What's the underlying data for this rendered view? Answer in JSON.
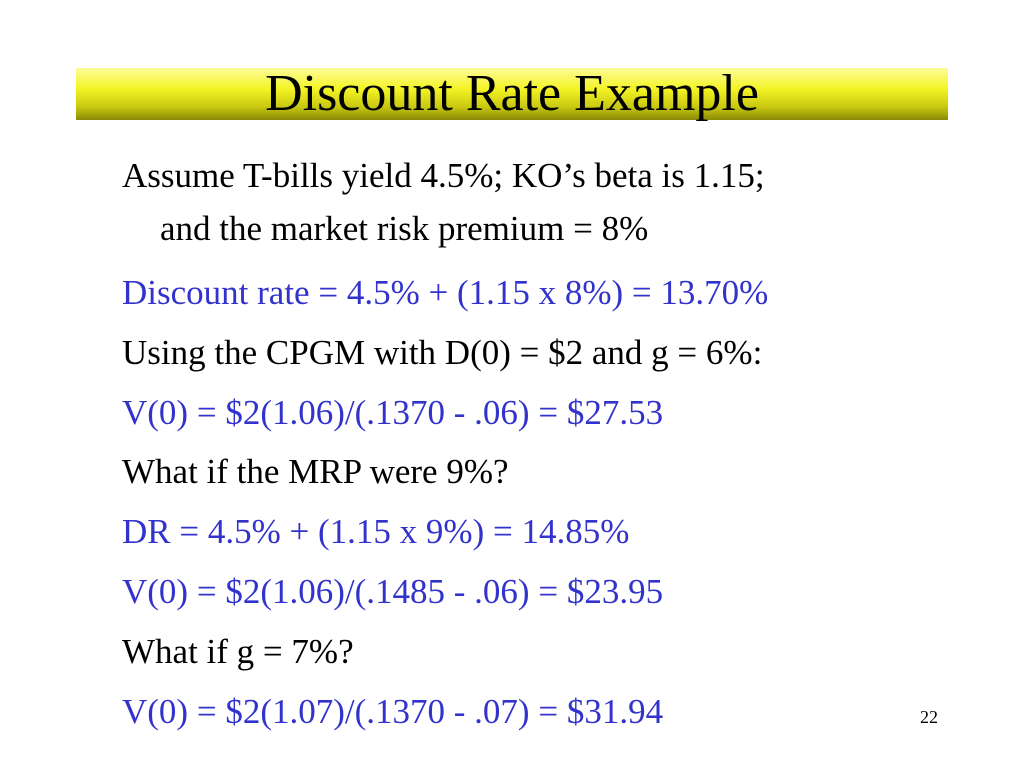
{
  "slide": {
    "title": "Discount Rate Example",
    "lines": [
      {
        "text": "Assume T-bills yield 4.5%; KO’s beta is 1.15;",
        "color": "#000000"
      },
      {
        "text": "and the market risk premium = 8%",
        "color": "#000000"
      },
      {
        "text": "Discount rate = 4.5% + (1.15 x 8%) = 13.70%",
        "color": "#3232cc"
      },
      {
        "text": "Using the CPGM with D(0) = $2 and g = 6%:",
        "color": "#000000"
      },
      {
        "text": "V(0) = $2(1.06)/(.1370 - .06) = $27.53",
        "color": "#3232cc"
      },
      {
        "text": "What if the MRP were 9%?",
        "color": "#000000"
      },
      {
        "text": "DR = 4.5% + (1.15 x 9%) = 14.85%",
        "color": "#3232cc"
      },
      {
        "text": "V(0) = $2(1.06)/(.1485 - .06) = $23.95",
        "color": "#3232cc"
      },
      {
        "text": "What if g = 7%?",
        "color": "#000000"
      },
      {
        "text": "V(0) = $2(1.07)/(.1370 - .07) = $31.94",
        "color": "#3232cc"
      }
    ],
    "page_number": "22"
  }
}
